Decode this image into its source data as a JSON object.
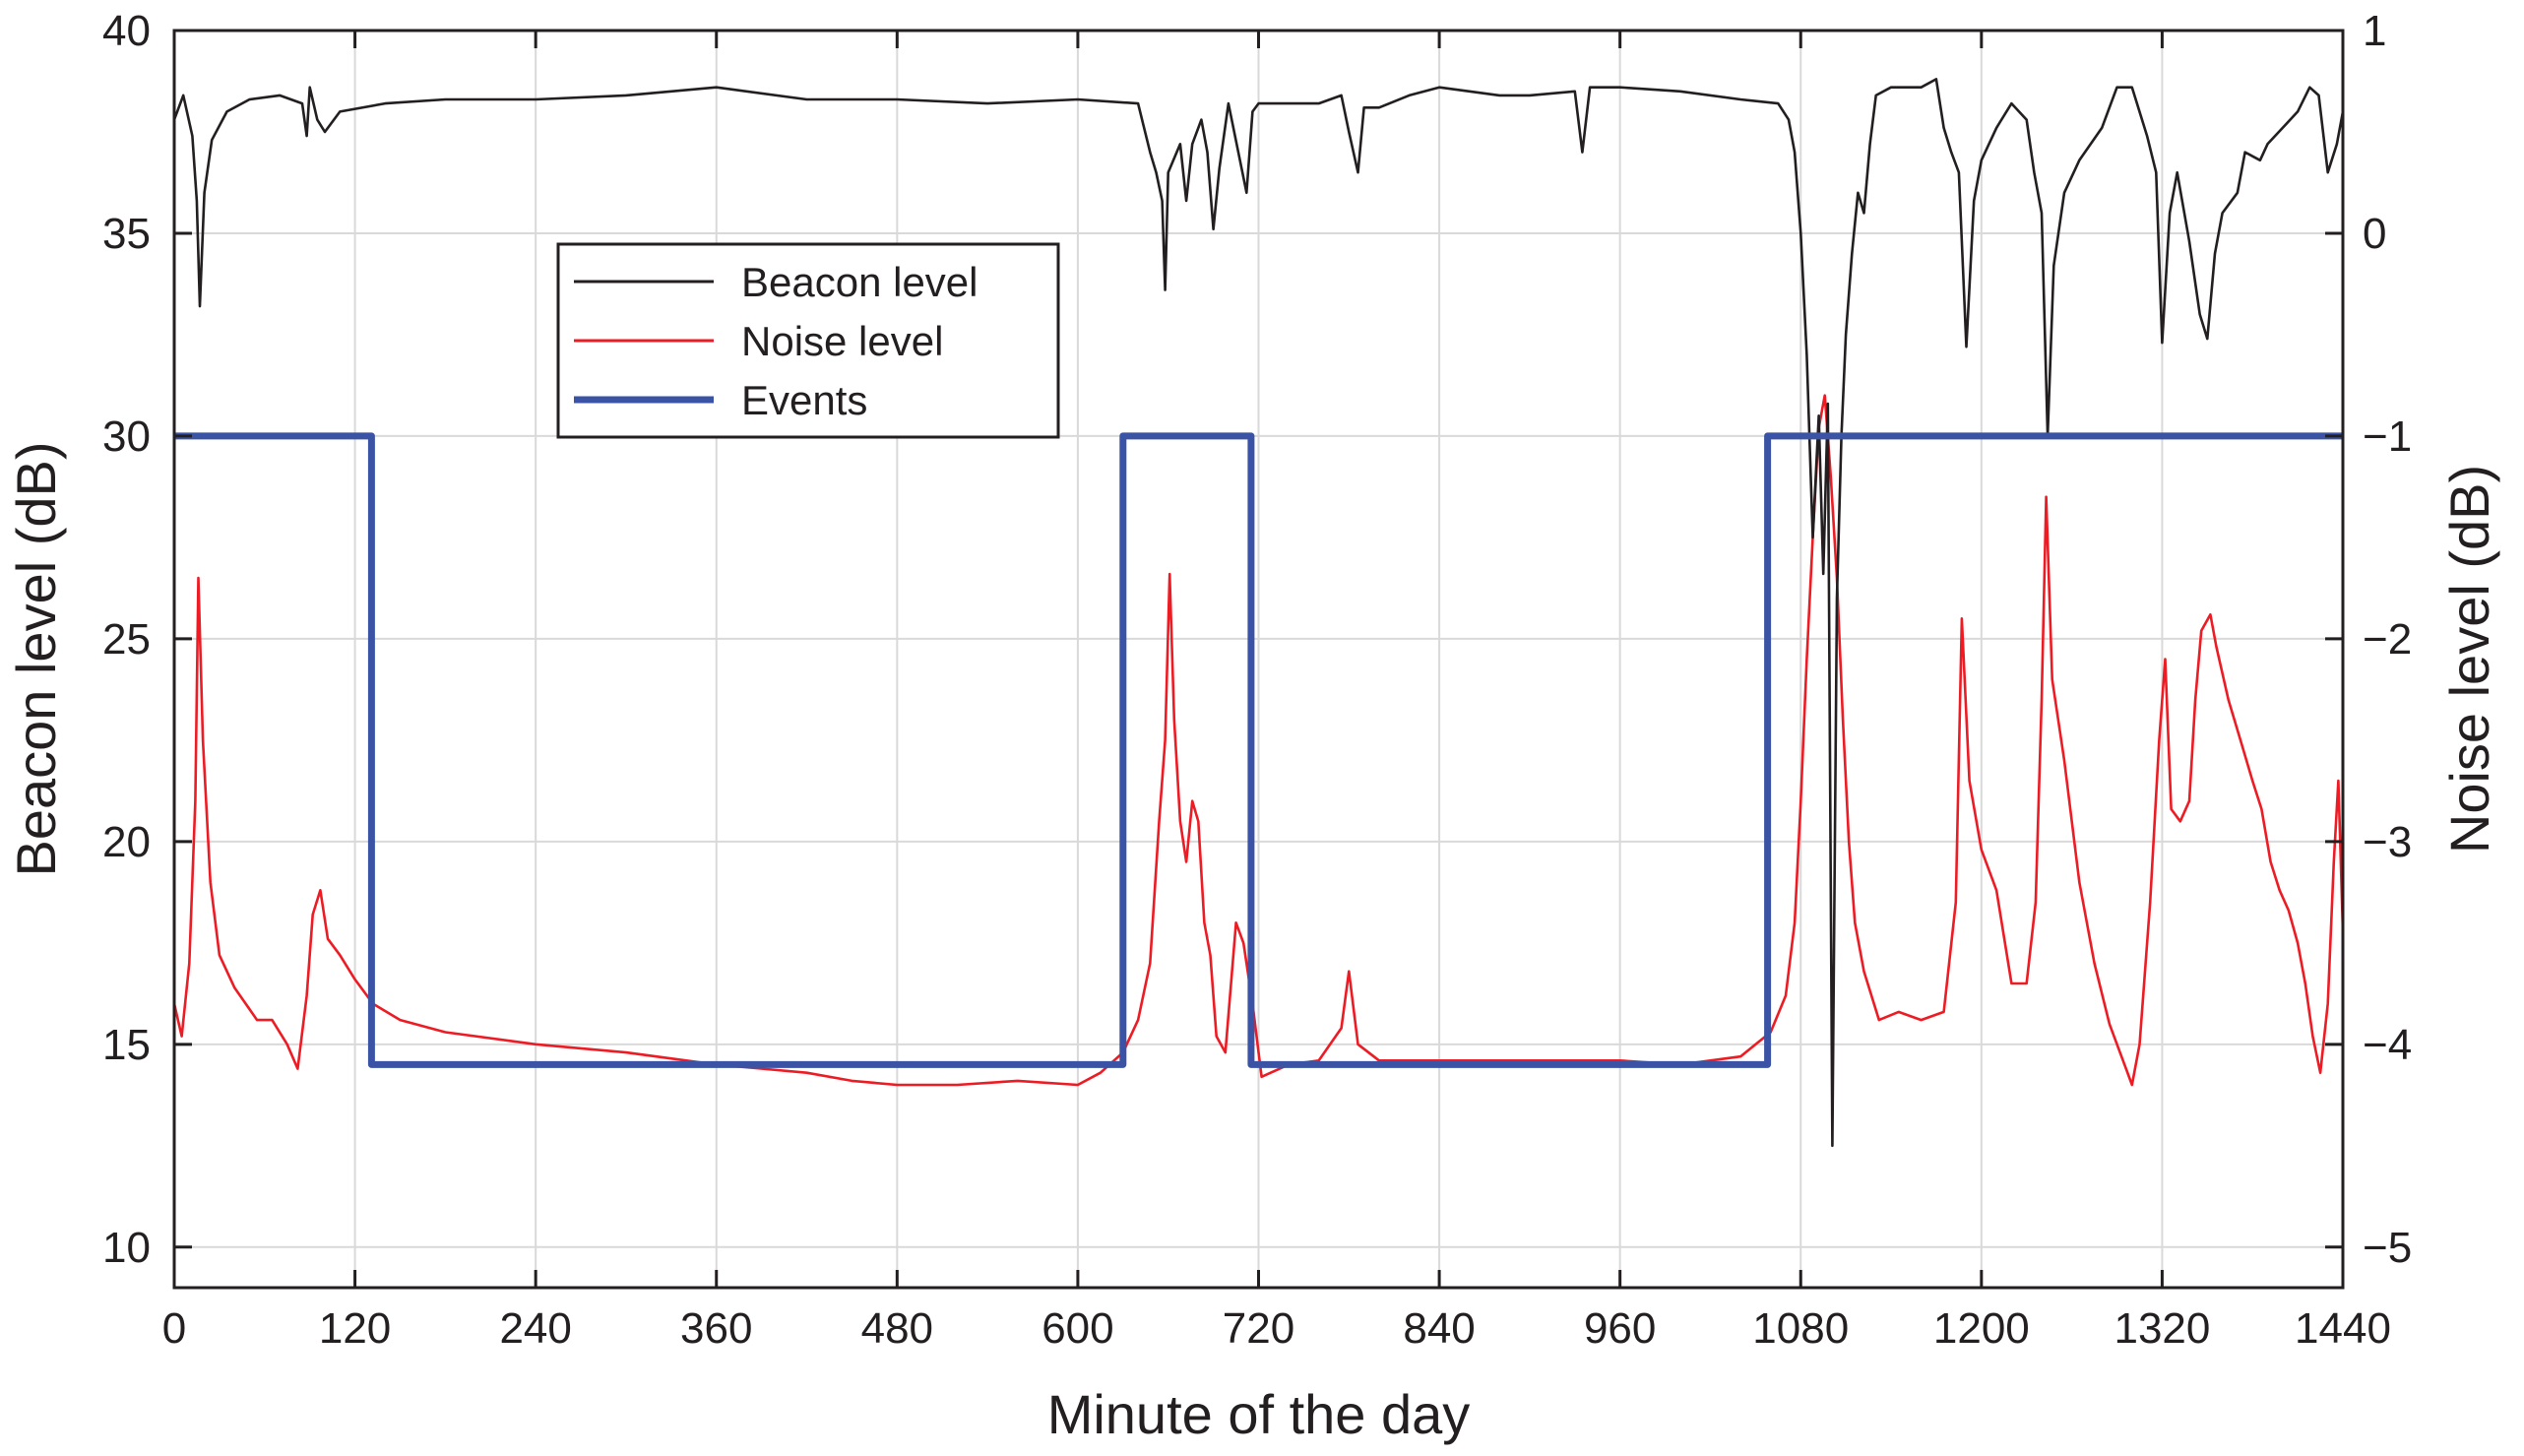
{
  "chart_data": {
    "type": "line",
    "xlabel": "Minute of the day",
    "ylabel_left": "Beacon level (dB)",
    "ylabel_right": "Noise level (dB)",
    "xlim": [
      0,
      1440
    ],
    "ylim_left": [
      9,
      40
    ],
    "ylim_right": [
      -5.2,
      1
    ],
    "x_ticks": [
      0,
      120,
      240,
      360,
      480,
      600,
      720,
      840,
      960,
      1080,
      1200,
      1320,
      1440
    ],
    "y_left_ticks": [
      10,
      15,
      20,
      25,
      30,
      35,
      40
    ],
    "y_right_ticks": [
      1,
      0,
      -1,
      -2,
      -3,
      -4,
      -5
    ],
    "y_right_tick_labels": [
      "1",
      "0",
      "−1",
      "−2",
      "−3",
      "−4",
      "−5"
    ],
    "grid": true,
    "legend_position": "upper-left-center",
    "colors": {
      "beacon": "#231f20",
      "noise": "#ed1c24",
      "events": "#3a53a4",
      "grid": "#d9d9d9"
    },
    "series": [
      {
        "name": "Beacon level",
        "axis": "left",
        "color": "#231f20",
        "style": "thin",
        "points": [
          [
            0,
            37.8
          ],
          [
            6,
            38.4
          ],
          [
            12,
            37.4
          ],
          [
            15,
            35.8
          ],
          [
            17,
            33.2
          ],
          [
            20,
            36.0
          ],
          [
            25,
            37.3
          ],
          [
            35,
            38.0
          ],
          [
            50,
            38.3
          ],
          [
            70,
            38.4
          ],
          [
            85,
            38.2
          ],
          [
            88,
            37.4
          ],
          [
            90,
            38.6
          ],
          [
            95,
            37.8
          ],
          [
            100,
            37.5
          ],
          [
            110,
            38.0
          ],
          [
            140,
            38.2
          ],
          [
            180,
            38.3
          ],
          [
            240,
            38.3
          ],
          [
            300,
            38.4
          ],
          [
            360,
            38.6
          ],
          [
            420,
            38.3
          ],
          [
            480,
            38.3
          ],
          [
            540,
            38.2
          ],
          [
            600,
            38.3
          ],
          [
            640,
            38.2
          ],
          [
            648,
            37.0
          ],
          [
            652,
            36.5
          ],
          [
            656,
            35.8
          ],
          [
            658,
            33.6
          ],
          [
            660,
            36.5
          ],
          [
            668,
            37.2
          ],
          [
            672,
            35.8
          ],
          [
            676,
            37.2
          ],
          [
            682,
            37.8
          ],
          [
            686,
            37.0
          ],
          [
            690,
            35.1
          ],
          [
            694,
            36.6
          ],
          [
            700,
            38.2
          ],
          [
            712,
            36.0
          ],
          [
            716,
            38.0
          ],
          [
            720,
            38.2
          ],
          [
            760,
            38.2
          ],
          [
            775,
            38.4
          ],
          [
            780,
            37.5
          ],
          [
            786,
            36.5
          ],
          [
            790,
            38.1
          ],
          [
            800,
            38.1
          ],
          [
            820,
            38.4
          ],
          [
            840,
            38.6
          ],
          [
            880,
            38.4
          ],
          [
            900,
            38.4
          ],
          [
            930,
            38.5
          ],
          [
            935,
            37.0
          ],
          [
            940,
            38.6
          ],
          [
            960,
            38.6
          ],
          [
            1000,
            38.5
          ],
          [
            1040,
            38.3
          ],
          [
            1065,
            38.2
          ],
          [
            1072,
            37.8
          ],
          [
            1076,
            37.0
          ],
          [
            1080,
            35.0
          ],
          [
            1084,
            32.0
          ],
          [
            1088,
            27.5
          ],
          [
            1092,
            30.5
          ],
          [
            1095,
            26.6
          ],
          [
            1098,
            30.8
          ],
          [
            1101,
            12.5
          ],
          [
            1104,
            26.0
          ],
          [
            1107,
            30.0
          ],
          [
            1110,
            32.5
          ],
          [
            1114,
            34.5
          ],
          [
            1118,
            36.0
          ],
          [
            1122,
            35.5
          ],
          [
            1126,
            37.2
          ],
          [
            1130,
            38.4
          ],
          [
            1140,
            38.6
          ],
          [
            1160,
            38.6
          ],
          [
            1170,
            38.8
          ],
          [
            1175,
            37.6
          ],
          [
            1180,
            37.0
          ],
          [
            1185,
            36.5
          ],
          [
            1190,
            32.2
          ],
          [
            1195,
            35.8
          ],
          [
            1200,
            36.8
          ],
          [
            1210,
            37.6
          ],
          [
            1220,
            38.2
          ],
          [
            1230,
            37.8
          ],
          [
            1235,
            36.5
          ],
          [
            1240,
            35.5
          ],
          [
            1244,
            30.0
          ],
          [
            1248,
            34.2
          ],
          [
            1255,
            36.0
          ],
          [
            1265,
            36.8
          ],
          [
            1280,
            37.6
          ],
          [
            1290,
            38.6
          ],
          [
            1300,
            38.6
          ],
          [
            1310,
            37.4
          ],
          [
            1316,
            36.5
          ],
          [
            1320,
            32.3
          ],
          [
            1325,
            35.5
          ],
          [
            1330,
            36.5
          ],
          [
            1338,
            34.8
          ],
          [
            1345,
            33.0
          ],
          [
            1350,
            32.4
          ],
          [
            1355,
            34.5
          ],
          [
            1360,
            35.5
          ],
          [
            1370,
            36.0
          ],
          [
            1375,
            37.0
          ],
          [
            1385,
            36.8
          ],
          [
            1390,
            37.2
          ],
          [
            1400,
            37.6
          ],
          [
            1410,
            38.0
          ],
          [
            1418,
            38.6
          ],
          [
            1424,
            38.4
          ],
          [
            1430,
            36.5
          ],
          [
            1436,
            37.2
          ],
          [
            1440,
            38.0
          ]
        ]
      },
      {
        "name": "Noise level",
        "axis": "left",
        "color": "#ed1c24",
        "style": "thin",
        "points": [
          [
            0,
            16.0
          ],
          [
            5,
            15.2
          ],
          [
            10,
            17.0
          ],
          [
            14,
            21.0
          ],
          [
            16,
            26.5
          ],
          [
            19,
            22.5
          ],
          [
            24,
            19.0
          ],
          [
            30,
            17.2
          ],
          [
            40,
            16.4
          ],
          [
            55,
            15.6
          ],
          [
            65,
            15.6
          ],
          [
            75,
            15.0
          ],
          [
            82,
            14.4
          ],
          [
            88,
            16.2
          ],
          [
            92,
            18.2
          ],
          [
            97,
            18.8
          ],
          [
            102,
            17.6
          ],
          [
            110,
            17.2
          ],
          [
            120,
            16.6
          ],
          [
            132,
            16.0
          ],
          [
            150,
            15.6
          ],
          [
            180,
            15.3
          ],
          [
            240,
            15.0
          ],
          [
            300,
            14.8
          ],
          [
            360,
            14.5
          ],
          [
            420,
            14.3
          ],
          [
            450,
            14.1
          ],
          [
            480,
            14.0
          ],
          [
            520,
            14.0
          ],
          [
            560,
            14.1
          ],
          [
            600,
            14.0
          ],
          [
            615,
            14.3
          ],
          [
            630,
            14.8
          ],
          [
            640,
            15.6
          ],
          [
            648,
            17.0
          ],
          [
            654,
            20.5
          ],
          [
            658,
            22.5
          ],
          [
            661,
            26.6
          ],
          [
            664,
            23.0
          ],
          [
            668,
            20.5
          ],
          [
            672,
            19.5
          ],
          [
            676,
            21.0
          ],
          [
            680,
            20.5
          ],
          [
            684,
            18.0
          ],
          [
            688,
            17.2
          ],
          [
            692,
            15.2
          ],
          [
            698,
            14.8
          ],
          [
            705,
            18.0
          ],
          [
            710,
            17.5
          ],
          [
            716,
            16.0
          ],
          [
            722,
            14.2
          ],
          [
            740,
            14.5
          ],
          [
            760,
            14.6
          ],
          [
            775,
            15.4
          ],
          [
            780,
            16.8
          ],
          [
            786,
            15.0
          ],
          [
            800,
            14.6
          ],
          [
            840,
            14.6
          ],
          [
            900,
            14.6
          ],
          [
            960,
            14.6
          ],
          [
            1000,
            14.5
          ],
          [
            1040,
            14.7
          ],
          [
            1060,
            15.3
          ],
          [
            1070,
            16.2
          ],
          [
            1076,
            18.0
          ],
          [
            1080,
            21.0
          ],
          [
            1084,
            24.5
          ],
          [
            1088,
            27.5
          ],
          [
            1092,
            30.2
          ],
          [
            1096,
            31.0
          ],
          [
            1100,
            29.0
          ],
          [
            1104,
            26.5
          ],
          [
            1108,
            23.0
          ],
          [
            1112,
            20.0
          ],
          [
            1116,
            18.0
          ],
          [
            1122,
            16.8
          ],
          [
            1132,
            15.6
          ],
          [
            1145,
            15.8
          ],
          [
            1160,
            15.6
          ],
          [
            1175,
            15.8
          ],
          [
            1183,
            18.5
          ],
          [
            1187,
            25.5
          ],
          [
            1192,
            21.5
          ],
          [
            1200,
            19.8
          ],
          [
            1210,
            18.8
          ],
          [
            1220,
            16.5
          ],
          [
            1230,
            16.5
          ],
          [
            1236,
            18.5
          ],
          [
            1240,
            23.5
          ],
          [
            1243,
            28.5
          ],
          [
            1247,
            24.0
          ],
          [
            1255,
            22.0
          ],
          [
            1265,
            19.0
          ],
          [
            1275,
            17.0
          ],
          [
            1285,
            15.5
          ],
          [
            1295,
            14.5
          ],
          [
            1300,
            14.0
          ],
          [
            1305,
            15.0
          ],
          [
            1312,
            18.5
          ],
          [
            1318,
            22.5
          ],
          [
            1322,
            24.5
          ],
          [
            1326,
            20.8
          ],
          [
            1332,
            20.5
          ],
          [
            1338,
            21.0
          ],
          [
            1342,
            23.5
          ],
          [
            1346,
            25.2
          ],
          [
            1352,
            25.6
          ],
          [
            1356,
            24.8
          ],
          [
            1364,
            23.5
          ],
          [
            1372,
            22.5
          ],
          [
            1380,
            21.5
          ],
          [
            1386,
            20.8
          ],
          [
            1392,
            19.5
          ],
          [
            1398,
            18.8
          ],
          [
            1404,
            18.3
          ],
          [
            1410,
            17.5
          ],
          [
            1415,
            16.5
          ],
          [
            1420,
            15.2
          ],
          [
            1425,
            14.3
          ],
          [
            1430,
            16.0
          ],
          [
            1434,
            19.5
          ],
          [
            1437,
            21.5
          ],
          [
            1440,
            17.8
          ]
        ]
      },
      {
        "name": "Events",
        "axis": "left",
        "color": "#3a53a4",
        "style": "thick-step",
        "points": [
          [
            0,
            30
          ],
          [
            131,
            30
          ],
          [
            131,
            14.5
          ],
          [
            630,
            14.5
          ],
          [
            630,
            30
          ],
          [
            715,
            30
          ],
          [
            715,
            14.5
          ],
          [
            1058,
            14.5
          ],
          [
            1058,
            30
          ],
          [
            1440,
            30
          ]
        ]
      }
    ]
  }
}
